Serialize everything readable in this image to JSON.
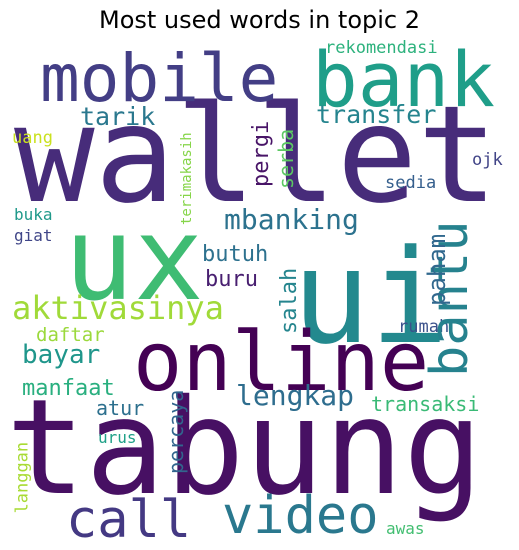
{
  "title": "Most used words in topic 2",
  "palette": {
    "dark_purple": "#46095a",
    "purple": "#482878",
    "indigo": "#3e4a89",
    "blue": "#31688e",
    "teal": "#26828e",
    "green_teal": "#1f9e89",
    "green": "#35b779",
    "light_green": "#6ece58",
    "yellow_green": "#b5de2b"
  },
  "words": [
    {
      "text": "wallet"
    },
    {
      "text": "ux"
    },
    {
      "text": "ui"
    },
    {
      "text": "tabung"
    },
    {
      "text": "online"
    },
    {
      "text": "bank"
    },
    {
      "text": "mobile"
    },
    {
      "text": "video"
    },
    {
      "text": "call"
    },
    {
      "text": "bantu"
    },
    {
      "text": "mbanking"
    },
    {
      "text": "aktivasinya"
    },
    {
      "text": "lengkap"
    },
    {
      "text": "transfer"
    },
    {
      "text": "tarik"
    },
    {
      "text": "bayar"
    },
    {
      "text": "butuh"
    },
    {
      "text": "paham"
    },
    {
      "text": "buru"
    },
    {
      "text": "salah"
    },
    {
      "text": "manfaat"
    },
    {
      "text": "daftar"
    },
    {
      "text": "atur"
    },
    {
      "text": "percaya"
    },
    {
      "text": "transaksi"
    },
    {
      "text": "rumah"
    },
    {
      "text": "pergi"
    },
    {
      "text": "serba"
    },
    {
      "text": "rekomendasi"
    },
    {
      "text": "terimakasih"
    },
    {
      "text": "uang"
    },
    {
      "text": "sedia"
    },
    {
      "text": "ojk"
    },
    {
      "text": "buka"
    },
    {
      "text": "giat"
    },
    {
      "text": "urus"
    },
    {
      "text": "langgan"
    },
    {
      "text": "awas"
    }
  ]
}
